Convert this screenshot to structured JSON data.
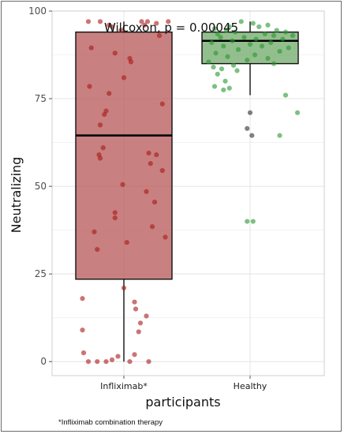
{
  "footnote": "*Infliximab combination therapy",
  "chart_data": {
    "type": "box",
    "title": "",
    "annotation": "Wilcoxon, p = 0.00045",
    "xlabel": "participants",
    "ylabel": "Neutralizing",
    "ylim": [
      -4,
      100
    ],
    "yticks": [
      0,
      25,
      50,
      75,
      100
    ],
    "grid": true,
    "categories": [
      "Infliximab*",
      "Healthy"
    ],
    "colors": {
      "Infliximab*": {
        "fill": "#b85c5c",
        "point": "#a81818"
      },
      "Healthy": {
        "fill": "#74ad6e",
        "point": "#26962e"
      },
      "outlier": "#555555"
    },
    "boxes": [
      {
        "name": "Infliximab*",
        "min": 0,
        "q1": 23.5,
        "median": 64.5,
        "q3": 94,
        "max": 97
      },
      {
        "name": "Healthy",
        "min": 76,
        "q1": 85,
        "median": 91.5,
        "q3": 94,
        "max": 97
      }
    ],
    "points": [
      {
        "group": "Infliximab*",
        "jitter": -0.6,
        "value": 97
      },
      {
        "group": "Infliximab*",
        "jitter": -0.4,
        "value": 97
      },
      {
        "group": "Infliximab*",
        "jitter": -0.25,
        "value": 96
      },
      {
        "group": "Infliximab*",
        "jitter": -0.2,
        "value": 95.5
      },
      {
        "group": "Infliximab*",
        "jitter": 0.3,
        "value": 97
      },
      {
        "group": "Infliximab*",
        "jitter": 0.35,
        "value": 96
      },
      {
        "group": "Infliximab*",
        "jitter": 0.4,
        "value": 97
      },
      {
        "group": "Infliximab*",
        "jitter": 0.55,
        "value": 96.5
      },
      {
        "group": "Infliximab*",
        "jitter": 0.75,
        "value": 97
      },
      {
        "group": "Infliximab*",
        "jitter": -0.05,
        "value": 94.5
      },
      {
        "group": "Infliximab*",
        "jitter": 0.6,
        "value": 93
      },
      {
        "group": "Infliximab*",
        "jitter": -0.55,
        "value": 89.5
      },
      {
        "group": "Infliximab*",
        "jitter": -0.15,
        "value": 88
      },
      {
        "group": "Infliximab*",
        "jitter": 0.1,
        "value": 86.5
      },
      {
        "group": "Infliximab*",
        "jitter": 0.12,
        "value": 85.5
      },
      {
        "group": "Infliximab*",
        "jitter": 0.0,
        "value": 81
      },
      {
        "group": "Infliximab*",
        "jitter": -0.58,
        "value": 78.5
      },
      {
        "group": "Infliximab*",
        "jitter": -0.25,
        "value": 76.5
      },
      {
        "group": "Infliximab*",
        "jitter": 0.65,
        "value": 73.5
      },
      {
        "group": "Infliximab*",
        "jitter": -0.3,
        "value": 71.5
      },
      {
        "group": "Infliximab*",
        "jitter": -0.33,
        "value": 70.5
      },
      {
        "group": "Infliximab*",
        "jitter": -0.4,
        "value": 67.5
      },
      {
        "group": "Infliximab*",
        "jitter": -0.35,
        "value": 61
      },
      {
        "group": "Infliximab*",
        "jitter": -0.42,
        "value": 59
      },
      {
        "group": "Infliximab*",
        "jitter": -0.4,
        "value": 58
      },
      {
        "group": "Infliximab*",
        "jitter": 0.42,
        "value": 59.5
      },
      {
        "group": "Infliximab*",
        "jitter": 0.55,
        "value": 59
      },
      {
        "group": "Infliximab*",
        "jitter": 0.45,
        "value": 56.5
      },
      {
        "group": "Infliximab*",
        "jitter": 0.65,
        "value": 54.5
      },
      {
        "group": "Infliximab*",
        "jitter": -0.02,
        "value": 50.5
      },
      {
        "group": "Infliximab*",
        "jitter": 0.38,
        "value": 48.5
      },
      {
        "group": "Infliximab*",
        "jitter": 0.52,
        "value": 45.5
      },
      {
        "group": "Infliximab*",
        "jitter": -0.15,
        "value": 42.5
      },
      {
        "group": "Infliximab*",
        "jitter": -0.15,
        "value": 41
      },
      {
        "group": "Infliximab*",
        "jitter": 0.48,
        "value": 38.5
      },
      {
        "group": "Infliximab*",
        "jitter": -0.5,
        "value": 37
      },
      {
        "group": "Infliximab*",
        "jitter": 0.7,
        "value": 35.5
      },
      {
        "group": "Infliximab*",
        "jitter": 0.05,
        "value": 34
      },
      {
        "group": "Infliximab*",
        "jitter": -0.45,
        "value": 32
      },
      {
        "group": "Infliximab*",
        "jitter": 0.0,
        "value": 21
      },
      {
        "group": "Infliximab*",
        "jitter": -0.7,
        "value": 18
      },
      {
        "group": "Infliximab*",
        "jitter": 0.18,
        "value": 17
      },
      {
        "group": "Infliximab*",
        "jitter": 0.2,
        "value": 15
      },
      {
        "group": "Infliximab*",
        "jitter": 0.38,
        "value": 13
      },
      {
        "group": "Infliximab*",
        "jitter": 0.28,
        "value": 11
      },
      {
        "group": "Infliximab*",
        "jitter": -0.7,
        "value": 9
      },
      {
        "group": "Infliximab*",
        "jitter": 0.25,
        "value": 8.5
      },
      {
        "group": "Infliximab*",
        "jitter": -0.68,
        "value": 2.5
      },
      {
        "group": "Infliximab*",
        "jitter": 0.18,
        "value": 2
      },
      {
        "group": "Infliximab*",
        "jitter": -0.1,
        "value": 1.5
      },
      {
        "group": "Infliximab*",
        "jitter": -0.6,
        "value": 0
      },
      {
        "group": "Infliximab*",
        "jitter": -0.45,
        "value": 0
      },
      {
        "group": "Infliximab*",
        "jitter": -0.3,
        "value": 0
      },
      {
        "group": "Infliximab*",
        "jitter": -0.2,
        "value": 0.5
      },
      {
        "group": "Infliximab*",
        "jitter": 0.1,
        "value": 0
      },
      {
        "group": "Infliximab*",
        "jitter": 0.42,
        "value": 0
      },
      {
        "group": "Healthy",
        "jitter": -0.15,
        "value": 97
      },
      {
        "group": "Healthy",
        "jitter": 0.05,
        "value": 96.5
      },
      {
        "group": "Healthy",
        "jitter": 0.3,
        "value": 96
      },
      {
        "group": "Healthy",
        "jitter": -0.35,
        "value": 95.5
      },
      {
        "group": "Healthy",
        "jitter": 0.15,
        "value": 95.5
      },
      {
        "group": "Healthy",
        "jitter": -0.6,
        "value": 95
      },
      {
        "group": "Healthy",
        "jitter": -0.4,
        "value": 94.5
      },
      {
        "group": "Healthy",
        "jitter": 0.45,
        "value": 94.5
      },
      {
        "group": "Healthy",
        "jitter": 0.6,
        "value": 94
      },
      {
        "group": "Healthy",
        "jitter": -0.25,
        "value": 94
      },
      {
        "group": "Healthy",
        "jitter": -0.55,
        "value": 93.5
      },
      {
        "group": "Healthy",
        "jitter": 0.25,
        "value": 93.5
      },
      {
        "group": "Healthy",
        "jitter": 0.4,
        "value": 93
      },
      {
        "group": "Healthy",
        "jitter": 0.72,
        "value": 93
      },
      {
        "group": "Healthy",
        "jitter": -0.5,
        "value": 92.5
      },
      {
        "group": "Healthy",
        "jitter": -0.1,
        "value": 92.5
      },
      {
        "group": "Healthy",
        "jitter": 0.1,
        "value": 92
      },
      {
        "group": "Healthy",
        "jitter": 0.55,
        "value": 92
      },
      {
        "group": "Healthy",
        "jitter": -0.3,
        "value": 91.5
      },
      {
        "group": "Healthy",
        "jitter": 0.35,
        "value": 91
      },
      {
        "group": "Healthy",
        "jitter": -0.65,
        "value": 91
      },
      {
        "group": "Healthy",
        "jitter": 0.0,
        "value": 90.5
      },
      {
        "group": "Healthy",
        "jitter": -0.45,
        "value": 90
      },
      {
        "group": "Healthy",
        "jitter": 0.2,
        "value": 90
      },
      {
        "group": "Healthy",
        "jitter": 0.65,
        "value": 89.5
      },
      {
        "group": "Healthy",
        "jitter": -0.2,
        "value": 89
      },
      {
        "group": "Healthy",
        "jitter": 0.5,
        "value": 88.5
      },
      {
        "group": "Healthy",
        "jitter": -0.58,
        "value": 88
      },
      {
        "group": "Healthy",
        "jitter": 0.08,
        "value": 87.5
      },
      {
        "group": "Healthy",
        "jitter": -0.38,
        "value": 87
      },
      {
        "group": "Healthy",
        "jitter": 0.3,
        "value": 86.5
      },
      {
        "group": "Healthy",
        "jitter": -0.05,
        "value": 86
      },
      {
        "group": "Healthy",
        "jitter": -0.7,
        "value": 85.5
      },
      {
        "group": "Healthy",
        "jitter": 0.4,
        "value": 85
      },
      {
        "group": "Healthy",
        "jitter": -0.28,
        "value": 84.5
      },
      {
        "group": "Healthy",
        "jitter": -0.62,
        "value": 84
      },
      {
        "group": "Healthy",
        "jitter": -0.48,
        "value": 83.5
      },
      {
        "group": "Healthy",
        "jitter": -0.22,
        "value": 83
      },
      {
        "group": "Healthy",
        "jitter": -0.55,
        "value": 82
      },
      {
        "group": "Healthy",
        "jitter": -0.42,
        "value": 80
      },
      {
        "group": "Healthy",
        "jitter": -0.6,
        "value": 78.5
      },
      {
        "group": "Healthy",
        "jitter": -0.35,
        "value": 78
      },
      {
        "group": "Healthy",
        "jitter": -0.45,
        "value": 77.5
      },
      {
        "group": "Healthy",
        "jitter": 0.6,
        "value": 76
      },
      {
        "group": "Healthy",
        "jitter": 0.8,
        "value": 71
      },
      {
        "group": "Healthy",
        "jitter": 0.5,
        "value": 64.5
      },
      {
        "group": "Healthy",
        "jitter": -0.05,
        "value": 40
      },
      {
        "group": "Healthy",
        "jitter": 0.05,
        "value": 40
      }
    ],
    "outliers": [
      {
        "group": "Healthy",
        "jitter": 0.0,
        "value": 71
      },
      {
        "group": "Healthy",
        "jitter": -0.05,
        "value": 66.5
      },
      {
        "group": "Healthy",
        "jitter": 0.03,
        "value": 64.5
      }
    ]
  }
}
